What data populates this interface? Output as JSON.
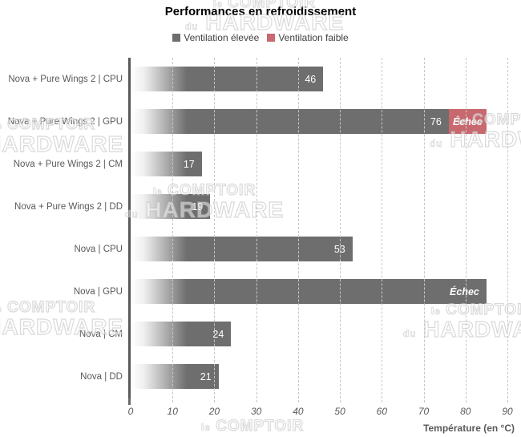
{
  "title": "Performances en refroidissement",
  "legend": {
    "items": [
      {
        "label": "Ventilation élevée",
        "color": "#6e6e6e"
      },
      {
        "label": "Ventilation faible",
        "color": "#c7696e"
      }
    ]
  },
  "watermark": {
    "small1": "le",
    "big1": "COMPTOIR",
    "small2": "du",
    "big2": "HARDWARE"
  },
  "colors": {
    "bar_high": "#6e6e6e",
    "bar_low": "#c7696e",
    "axis_text": "#595959",
    "gridline": "#c6c6c6",
    "value_label": "#ffffff"
  },
  "chart_data": {
    "type": "bar",
    "orientation": "horizontal",
    "title": "Performances en refroidissement",
    "xlabel": "Température (en °C)",
    "ylabel": "",
    "xlim": [
      0,
      90
    ],
    "xticks": [
      0,
      10,
      20,
      30,
      40,
      50,
      60,
      70,
      80,
      90
    ],
    "grid": "dashed-vertical",
    "legend_position": "top-center",
    "series_names": [
      "Ventilation élevée",
      "Ventilation faible"
    ],
    "fail_text": "Échec",
    "rows": [
      {
        "category": "Nova + Pure Wings 2 | CPU",
        "high": 46,
        "high_label": "46"
      },
      {
        "category": "Nova + Pure Wings 2 | GPU",
        "high": 76,
        "high_label": "76",
        "low_end": 85,
        "low_label": "Échec"
      },
      {
        "category": "Nova + Pure Wings 2 | CM",
        "high": 17,
        "high_label": "17"
      },
      {
        "category": "Nova + Pure Wings 2 | DD",
        "high": 19,
        "high_label": "19"
      },
      {
        "category": "Nova | CPU",
        "high": 53,
        "high_label": "53"
      },
      {
        "category": "Nova | GPU",
        "high": 85,
        "high_label": "Échec",
        "high_fail": true
      },
      {
        "category": "Nova | CM",
        "high": 24,
        "high_label": "24"
      },
      {
        "category": "Nova | DD",
        "high": 21,
        "high_label": "21"
      }
    ]
  }
}
